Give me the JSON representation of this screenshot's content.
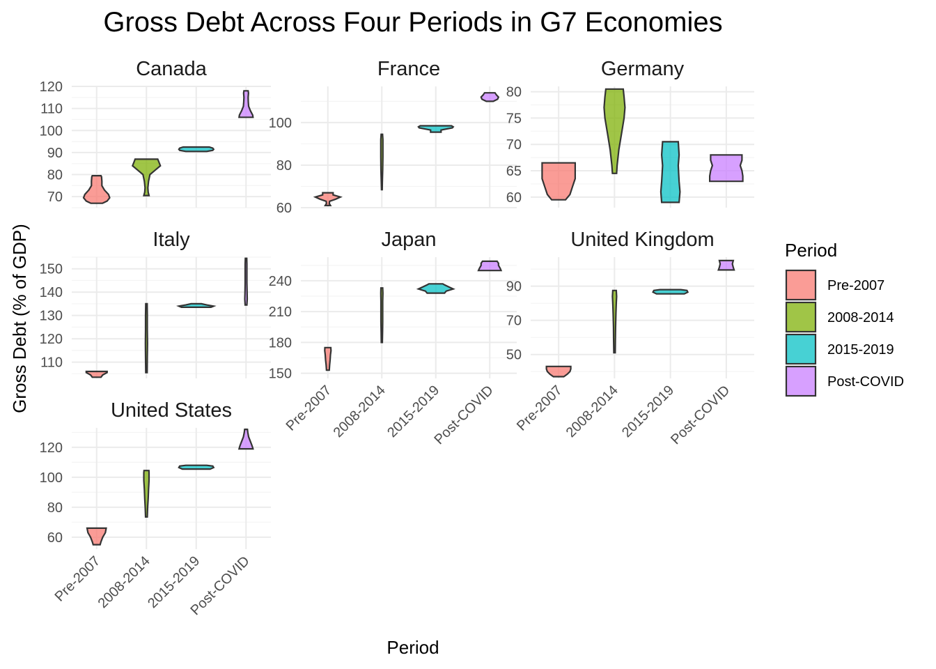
{
  "chart_data": {
    "type": "violin",
    "title": "Gross Debt Across Four Periods in G7 Economies",
    "xlabel": "Period",
    "ylabel": "Gross Debt (% of GDP)",
    "legend": {
      "title": "Period",
      "position": "right",
      "items": [
        {
          "label": "Pre-2007",
          "color": "#F8766D"
        },
        {
          "label": "2008-2014",
          "color": "#7CAE00"
        },
        {
          "label": "2015-2019",
          "color": "#00BFC4"
        },
        {
          "label": "Post-COVID",
          "color": "#C77CFF"
        }
      ]
    },
    "categories": [
      "Pre-2007",
      "2008-2014",
      "2015-2019",
      "Post-COVID"
    ],
    "facets": [
      {
        "name": "Canada",
        "ylim": [
          65,
          120
        ],
        "yticks": [
          70,
          80,
          90,
          100,
          110,
          120
        ],
        "violins": [
          {
            "period": "Pre-2007",
            "min": 67,
            "max": 79.5,
            "profile": [
              [
                67,
                0.33
              ],
              [
                68,
                0.6
              ],
              [
                69.5,
                0.75
              ],
              [
                71,
                0.68
              ],
              [
                73,
                0.45
              ],
              [
                75,
                0.3
              ],
              [
                77,
                0.3
              ],
              [
                79,
                0.28
              ],
              [
                79.5,
                0.25
              ]
            ]
          },
          {
            "period": "2008-2014",
            "min": 70.5,
            "max": 87,
            "profile": [
              [
                70.5,
                0.15
              ],
              [
                72,
                0.1
              ],
              [
                74,
                0.08
              ],
              [
                77,
                0.12
              ],
              [
                80,
                0.2
              ],
              [
                82,
                0.5
              ],
              [
                84,
                0.8
              ],
              [
                86,
                0.7
              ],
              [
                87,
                0.65
              ]
            ]
          },
          {
            "period": "2015-2019",
            "min": 90.5,
            "max": 92.5,
            "profile": [
              [
                90.5,
                0.6
              ],
              [
                91,
                0.95
              ],
              [
                91.5,
                1
              ],
              [
                92,
                0.95
              ],
              [
                92.5,
                0.75
              ]
            ]
          },
          {
            "period": "Post-COVID",
            "min": 106,
            "max": 118,
            "profile": [
              [
                106,
                0.4
              ],
              [
                107,
                0.38
              ],
              [
                109,
                0.25
              ],
              [
                111,
                0.15
              ],
              [
                113,
                0.13
              ],
              [
                115,
                0.12
              ],
              [
                117,
                0.14
              ],
              [
                118,
                0.12
              ]
            ]
          }
        ]
      },
      {
        "name": "France",
        "ylim": [
          60,
          117
        ],
        "yticks": [
          60,
          80,
          100
        ],
        "violins": [
          {
            "period": "Pre-2007",
            "min": 61,
            "max": 67,
            "profile": [
              [
                61,
                0.15
              ],
              [
                62,
                0.08
              ],
              [
                63,
                0.1
              ],
              [
                64,
                0.45
              ],
              [
                65,
                0.72
              ],
              [
                66,
                0.3
              ],
              [
                67,
                0.3
              ]
            ]
          },
          {
            "period": "2008-2014",
            "min": 68.5,
            "max": 94.5,
            "profile": [
              [
                68.5,
                0.02
              ],
              [
                72,
                0.03
              ],
              [
                78,
                0.05
              ],
              [
                84,
                0.06
              ],
              [
                88,
                0.06
              ],
              [
                92,
                0.06
              ],
              [
                94.5,
                0.04
              ]
            ]
          },
          {
            "period": "2015-2019",
            "min": 95.5,
            "max": 98.5,
            "profile": [
              [
                95.5,
                0.3
              ],
              [
                96.5,
                0.3
              ],
              [
                97.5,
                0.95
              ],
              [
                98,
                1
              ],
              [
                98.5,
                0.9
              ]
            ]
          },
          {
            "period": "Post-COVID",
            "min": 110,
            "max": 114,
            "profile": [
              [
                110,
                0.2
              ],
              [
                111,
                0.45
              ],
              [
                112,
                0.5
              ],
              [
                113,
                0.38
              ],
              [
                114,
                0.3
              ]
            ]
          }
        ]
      },
      {
        "name": "Germany",
        "ylim": [
          58,
          81
        ],
        "yticks": [
          60,
          65,
          70,
          75,
          80
        ],
        "violins": [
          {
            "period": "Pre-2007",
            "min": 59.5,
            "max": 66.5,
            "profile": [
              [
                59.5,
                0.4
              ],
              [
                60.5,
                0.65
              ],
              [
                62,
                0.8
              ],
              [
                63.5,
                0.95
              ],
              [
                65,
                0.95
              ],
              [
                66.5,
                0.95
              ]
            ]
          },
          {
            "period": "2008-2014",
            "min": 64.5,
            "max": 80.5,
            "profile": [
              [
                64.5,
                0.12
              ],
              [
                66,
                0.15
              ],
              [
                69,
                0.25
              ],
              [
                72,
                0.4
              ],
              [
                75,
                0.55
              ],
              [
                77,
                0.6
              ],
              [
                79,
                0.55
              ],
              [
                80.5,
                0.5
              ]
            ]
          },
          {
            "period": "2015-2019",
            "min": 59,
            "max": 70.5,
            "profile": [
              [
                59,
                0.5
              ],
              [
                61,
                0.55
              ],
              [
                63,
                0.5
              ],
              [
                66,
                0.45
              ],
              [
                68,
                0.5
              ],
              [
                70.5,
                0.45
              ]
            ]
          },
          {
            "period": "Post-COVID",
            "min": 63,
            "max": 68,
            "profile": [
              [
                63,
                0.95
              ],
              [
                64,
                0.95
              ],
              [
                65,
                0.9
              ],
              [
                66,
                0.8
              ],
              [
                67,
                0.9
              ],
              [
                68,
                0.9
              ]
            ]
          }
        ]
      },
      {
        "name": "Italy",
        "ylim": [
          103,
          155
        ],
        "yticks": [
          110,
          120,
          130,
          140,
          150
        ],
        "violins": [
          {
            "period": "Pre-2007",
            "min": 103.5,
            "max": 106,
            "profile": [
              [
                103.5,
                0.25
              ],
              [
                104.5,
                0.35
              ],
              [
                105.5,
                0.6
              ],
              [
                106,
                0.6
              ]
            ]
          },
          {
            "period": "2008-2014",
            "min": 105.5,
            "max": 135,
            "profile": [
              [
                105.5,
                0.04
              ],
              [
                112,
                0.05
              ],
              [
                118,
                0.06
              ],
              [
                124,
                0.05
              ],
              [
                130,
                0.05
              ],
              [
                135,
                0.04
              ]
            ]
          },
          {
            "period": "2015-2019",
            "min": 133.5,
            "max": 135,
            "profile": [
              [
                133.5,
                0.85
              ],
              [
                134,
                1
              ],
              [
                134.5,
                0.6
              ],
              [
                135,
                0.3
              ]
            ]
          },
          {
            "period": "Post-COVID",
            "min": 134.5,
            "max": 154.5,
            "profile": [
              [
                134.5,
                0.05
              ],
              [
                137,
                0.07
              ],
              [
                140,
                0.06
              ],
              [
                144,
                0.05
              ],
              [
                148,
                0.05
              ],
              [
                152,
                0.05
              ],
              [
                154.5,
                0.04
              ]
            ]
          }
        ]
      },
      {
        "name": "Japan",
        "ylim": [
          145,
          263
        ],
        "yticks": [
          150,
          180,
          210,
          240
        ],
        "violins": [
          {
            "period": "Pre-2007",
            "min": 153,
            "max": 175,
            "profile": [
              [
                153,
                0.08
              ],
              [
                158,
                0.1
              ],
              [
                163,
                0.13
              ],
              [
                168,
                0.15
              ],
              [
                172,
                0.18
              ],
              [
                175,
                0.17
              ]
            ]
          },
          {
            "period": "2008-2014",
            "min": 180,
            "max": 233,
            "profile": [
              [
                180,
                0.03
              ],
              [
                190,
                0.04
              ],
              [
                200,
                0.05
              ],
              [
                210,
                0.05
              ],
              [
                220,
                0.05
              ],
              [
                228,
                0.06
              ],
              [
                233,
                0.05
              ]
            ]
          },
          {
            "period": "2015-2019",
            "min": 228,
            "max": 237,
            "profile": [
              [
                228,
                0.5
              ],
              [
                230,
                0.6
              ],
              [
                232,
                1
              ],
              [
                234,
                0.75
              ],
              [
                236,
                0.5
              ],
              [
                237,
                0.4
              ]
            ]
          },
          {
            "period": "Post-COVID",
            "min": 250,
            "max": 259,
            "profile": [
              [
                250,
                0.65
              ],
              [
                252,
                0.6
              ],
              [
                255,
                0.5
              ],
              [
                257,
                0.5
              ],
              [
                259,
                0.42
              ]
            ]
          }
        ]
      },
      {
        "name": "United Kingdom",
        "ylim": [
          36,
          107
        ],
        "yticks": [
          50,
          70,
          90
        ],
        "violins": [
          {
            "period": "Pre-2007",
            "min": 37,
            "max": 43,
            "profile": [
              [
                37,
                0.3
              ],
              [
                38.5,
                0.5
              ],
              [
                40,
                0.65
              ],
              [
                41.5,
                0.7
              ],
              [
                43,
                0.7
              ]
            ]
          },
          {
            "period": "2008-2014",
            "min": 51,
            "max": 87.5,
            "profile": [
              [
                51,
                0.04
              ],
              [
                58,
                0.05
              ],
              [
                66,
                0.06
              ],
              [
                74,
                0.08
              ],
              [
                80,
                0.1
              ],
              [
                84,
                0.12
              ],
              [
                87.5,
                0.1
              ]
            ]
          },
          {
            "period": "2015-2019",
            "min": 85.5,
            "max": 88,
            "profile": [
              [
                85.5,
                0.8
              ],
              [
                86.5,
                1
              ],
              [
                87.5,
                0.95
              ],
              [
                88,
                0.6
              ]
            ]
          },
          {
            "period": "Post-COVID",
            "min": 99.5,
            "max": 105,
            "profile": [
              [
                99.5,
                0.45
              ],
              [
                101,
                0.4
              ],
              [
                103,
                0.35
              ],
              [
                105,
                0.4
              ]
            ]
          }
        ]
      },
      {
        "name": "United States",
        "ylim": [
          52,
          133
        ],
        "yticks": [
          60,
          80,
          100,
          120
        ],
        "violins": [
          {
            "period": "Pre-2007",
            "min": 55,
            "max": 66,
            "profile": [
              [
                55,
                0.2
              ],
              [
                57,
                0.25
              ],
              [
                60,
                0.35
              ],
              [
                63,
                0.5
              ],
              [
                66,
                0.55
              ]
            ]
          },
          {
            "period": "2008-2014",
            "min": 73.5,
            "max": 104.5,
            "profile": [
              [
                73.5,
                0.05
              ],
              [
                80,
                0.07
              ],
              [
                86,
                0.1
              ],
              [
                92,
                0.12
              ],
              [
                98,
                0.15
              ],
              [
                103,
                0.15
              ],
              [
                104.5,
                0.14
              ]
            ]
          },
          {
            "period": "2015-2019",
            "min": 105.5,
            "max": 108,
            "profile": [
              [
                105.5,
                0.8
              ],
              [
                106.5,
                1
              ],
              [
                107.5,
                0.95
              ],
              [
                108,
                0.6
              ]
            ]
          },
          {
            "period": "Post-COVID",
            "min": 119,
            "max": 132,
            "profile": [
              [
                119,
                0.4
              ],
              [
                121,
                0.35
              ],
              [
                124,
                0.25
              ],
              [
                127,
                0.15
              ],
              [
                130,
                0.1
              ],
              [
                132,
                0.08
              ]
            ]
          }
        ]
      }
    ]
  }
}
